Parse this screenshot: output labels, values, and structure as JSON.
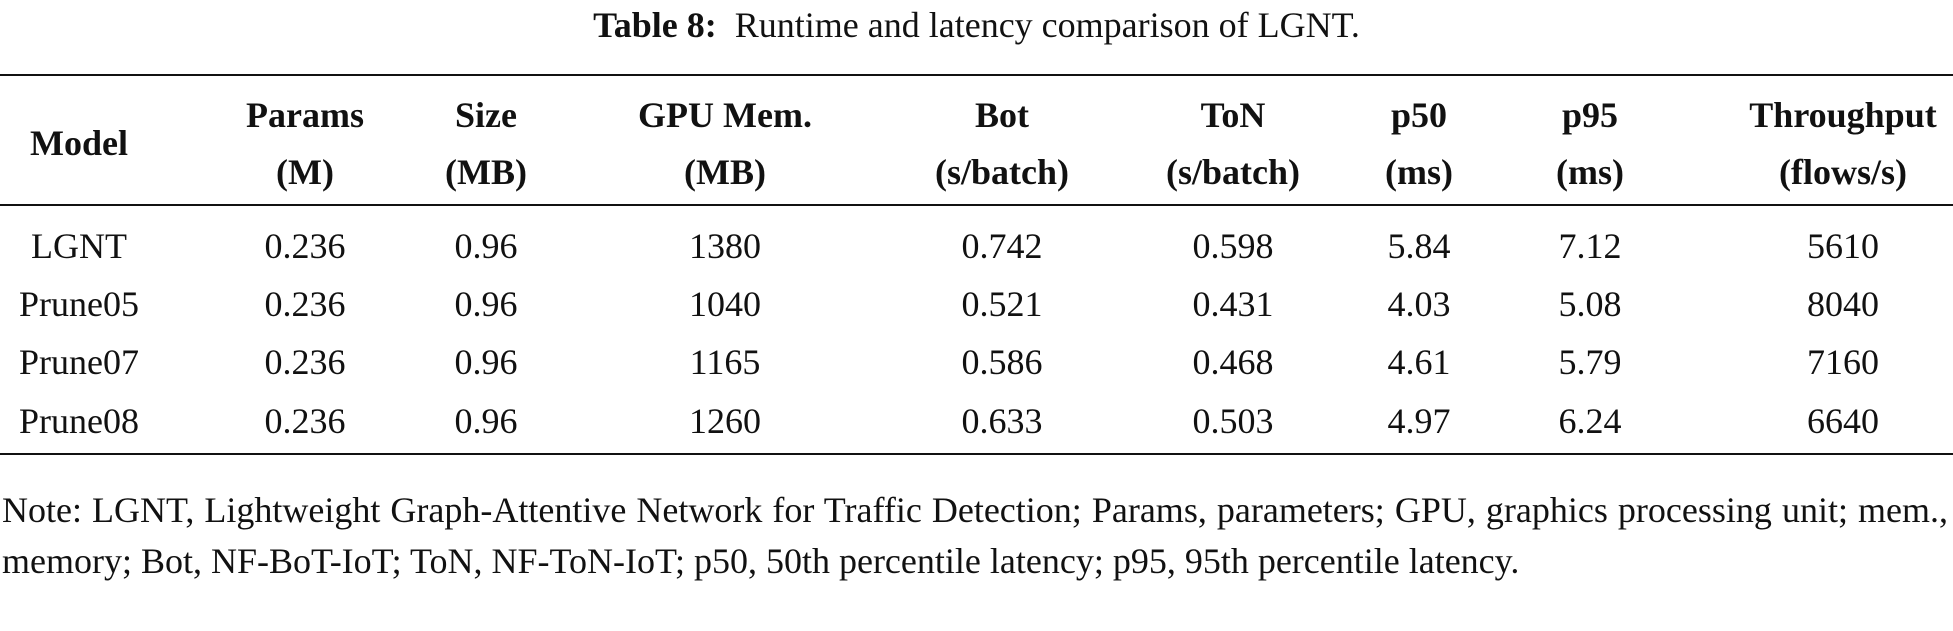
{
  "caption": {
    "label": "Table 8:",
    "text": "Runtime and latency comparison of LGNT."
  },
  "table": {
    "header": [
      [
        "Model"
      ],
      [
        "Params",
        "(M)"
      ],
      [
        "Size",
        "(MB)"
      ],
      [
        "GPU Mem.",
        "(MB)"
      ],
      [
        "Bot",
        "(s/batch)"
      ],
      [
        "ToN",
        "(s/batch)"
      ],
      [
        "p50",
        "(ms)"
      ],
      [
        "p95",
        "(ms)"
      ],
      [
        "Throughput",
        "(flows/s)"
      ]
    ],
    "rows": [
      [
        "LGNT",
        "0.236",
        "0.96",
        "1380",
        "0.742",
        "0.598",
        "5.84",
        "7.12",
        "5610"
      ],
      [
        "Prune05",
        "0.236",
        "0.96",
        "1040",
        "0.521",
        "0.431",
        "4.03",
        "5.08",
        "8040"
      ],
      [
        "Prune07",
        "0.236",
        "0.96",
        "1165",
        "0.586",
        "0.468",
        "4.61",
        "5.79",
        "7160"
      ],
      [
        "Prune08",
        "0.236",
        "0.96",
        "1260",
        "0.633",
        "0.503",
        "4.97",
        "6.24",
        "6640"
      ]
    ]
  },
  "note": "Note: LGNT, Lightweight Graph-Attentive Network for Traffic Detection; Params, parameters; GPU, graphics processing unit; mem., memory; Bot, NF-BoT-IoT; ToN, NF-ToN-IoT; p50, 50th percentile latency; p95, 95th percentile latency."
}
